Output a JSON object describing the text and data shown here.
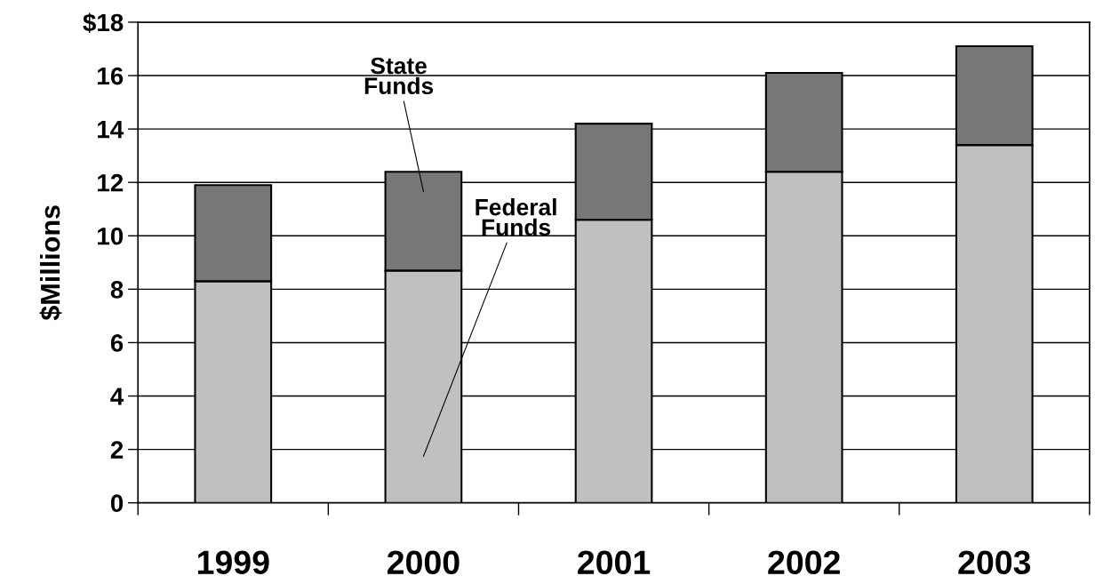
{
  "chart_data": {
    "type": "bar",
    "stacked": true,
    "ylabel": "$Millions",
    "categories": [
      "1999",
      "2000",
      "2001",
      "2002",
      "2003"
    ],
    "series": [
      {
        "name": "Federal Funds",
        "color": "#c0c0c0",
        "values": [
          8.3,
          8.7,
          10.6,
          12.4,
          13.4
        ]
      },
      {
        "name": "State Funds",
        "color": "#777777",
        "values": [
          3.6,
          3.7,
          3.6,
          3.7,
          3.7
        ]
      }
    ],
    "ylim": [
      0,
      18
    ],
    "yticks": [
      0,
      2,
      4,
      6,
      8,
      10,
      12,
      14,
      16,
      {
        "value": 18,
        "label": "$18"
      }
    ],
    "grid": "y",
    "legend": false
  }
}
